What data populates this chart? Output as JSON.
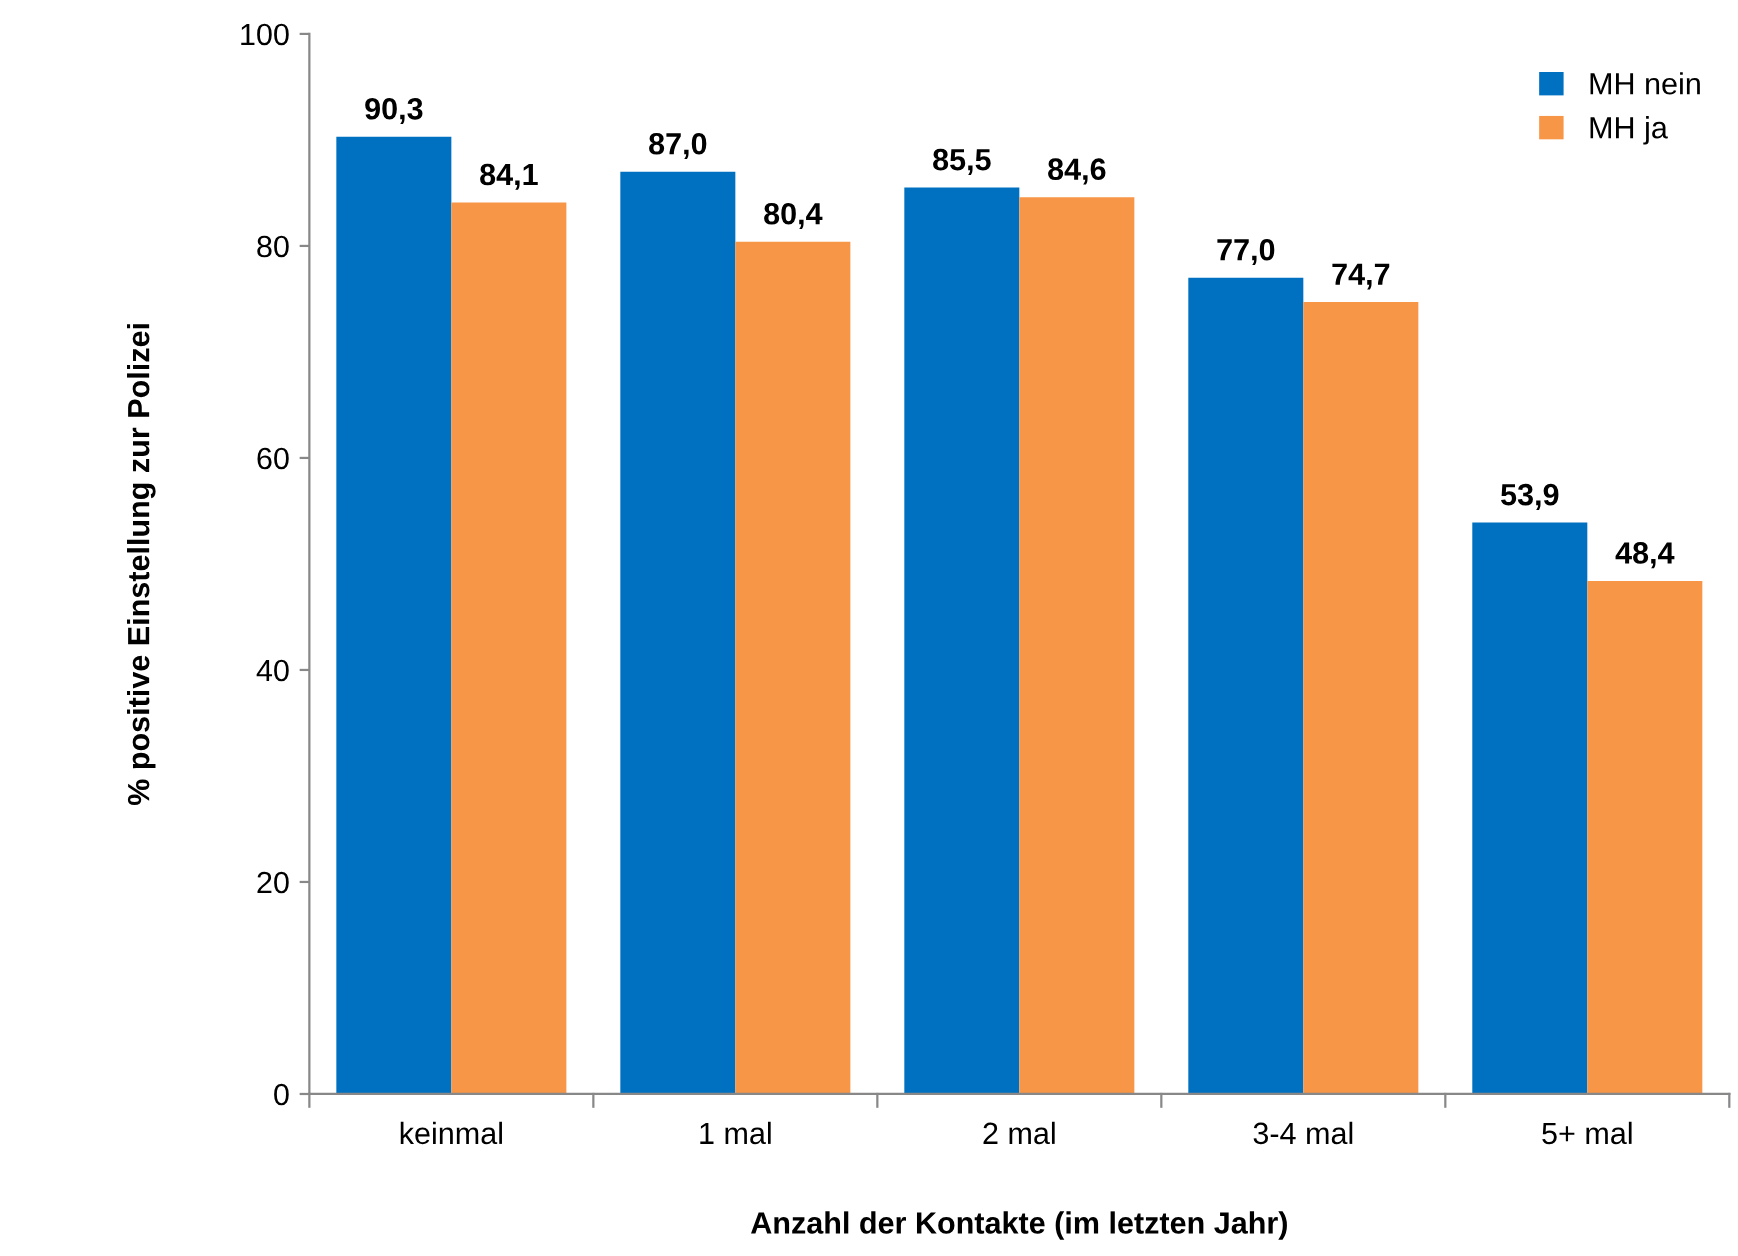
{
  "chart_data": {
    "type": "bar",
    "categories": [
      "keinmal",
      "1 mal",
      "2 mal",
      "3-4 mal",
      "5+ mal"
    ],
    "series": [
      {
        "name": "MH nein",
        "color": "#0070c0",
        "values": [
          90.3,
          87.0,
          85.5,
          77.0,
          53.9
        ],
        "value_labels": [
          "90,3",
          "87,0",
          "85,5",
          "77,0",
          "53,9"
        ]
      },
      {
        "name": "MH ja",
        "color": "#f79646",
        "values": [
          84.1,
          80.4,
          84.6,
          74.7,
          48.4
        ],
        "value_labels": [
          "84,1",
          "80,4",
          "84,6",
          "74,7",
          "48,4"
        ]
      }
    ],
    "xlabel": "Anzahl der Kontakte (im letzten Jahr)",
    "ylabel": "% positive Einstellung zur Polizei",
    "ylim": [
      0,
      100
    ],
    "yticks": [
      0,
      20,
      40,
      60,
      80,
      100
    ],
    "grid": false,
    "legend": "top right"
  }
}
